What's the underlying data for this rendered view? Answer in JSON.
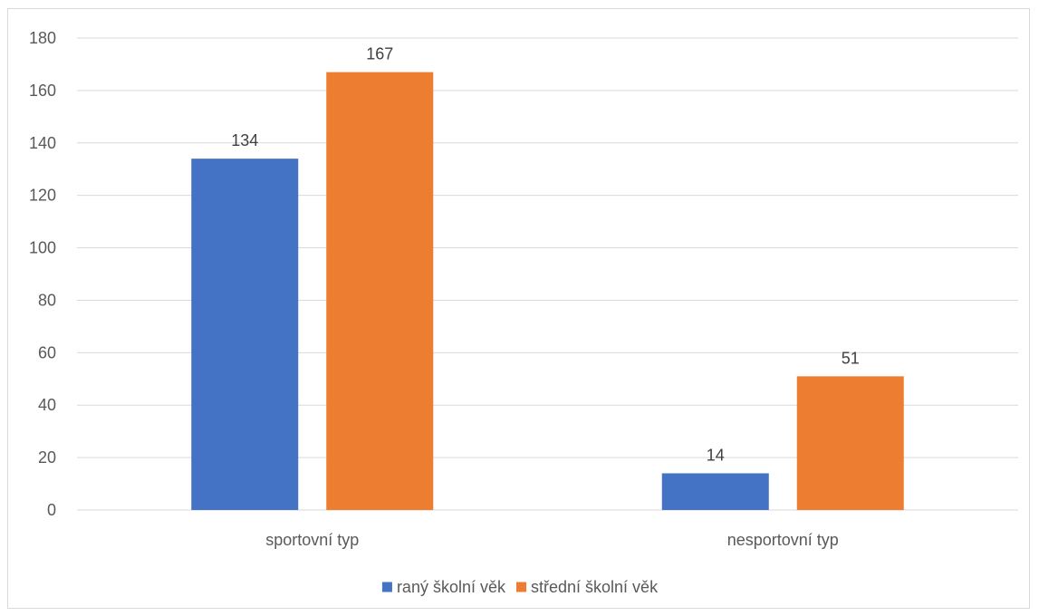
{
  "chart_data": {
    "type": "bar",
    "title": "",
    "xlabel": "",
    "ylabel": "",
    "categories": [
      "sportovní typ",
      "nesportovní typ"
    ],
    "series": [
      {
        "name": "raný školní věk",
        "values": [
          134,
          14
        ],
        "color": "#4472c4"
      },
      {
        "name": "střední školní věk",
        "values": [
          167,
          51
        ],
        "color": "#ed7d31"
      }
    ],
    "ylim": [
      0,
      180
    ],
    "yticks": [
      0,
      20,
      40,
      60,
      80,
      100,
      120,
      140,
      160,
      180
    ],
    "grid": true,
    "legend": "bottom",
    "data_labels": true,
    "gridline_color": "#d9d9d9"
  }
}
